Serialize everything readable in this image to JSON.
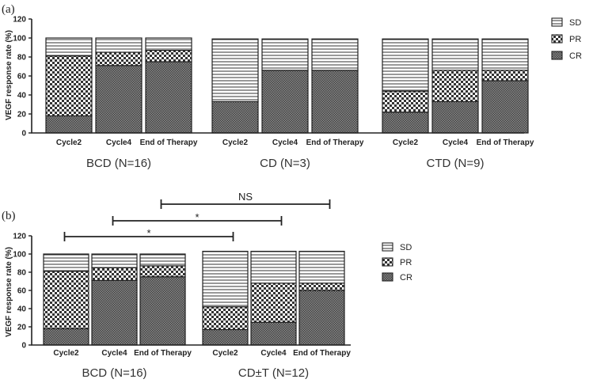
{
  "chart_data": [
    {
      "type": "bar",
      "stacked": true,
      "panel_label": "(a)",
      "ylabel": "VEGF response rate (%)",
      "ylim": [
        0,
        120
      ],
      "yticks": [
        "0",
        "20",
        "40",
        "60",
        "80",
        "100",
        "120"
      ],
      "legend_position": "right",
      "legend": [
        "SD",
        "PR",
        "CR"
      ],
      "groups": [
        {
          "label": "BCD (N=16)",
          "categories": [
            "Cycle2",
            "Cycle4",
            "End of Therapy"
          ],
          "series": [
            {
              "name": "CR",
              "values": [
                18,
                71,
                75
              ]
            },
            {
              "name": "PR",
              "values": [
                63,
                14,
                12
              ]
            },
            {
              "name": "SD",
              "values": [
                19,
                15,
                13
              ]
            }
          ]
        },
        {
          "label": "CD (N=3)",
          "categories": [
            "Cycle2",
            "Cycle4",
            "End of Therapy"
          ],
          "series": [
            {
              "name": "CR",
              "values": [
                33,
                66,
                66
              ]
            },
            {
              "name": "PR",
              "values": [
                0,
                0,
                0
              ]
            },
            {
              "name": "SD",
              "values": [
                66,
                33,
                33
              ]
            }
          ]
        },
        {
          "label": "CTD (N=9)",
          "categories": [
            "Cycle2",
            "Cycle4",
            "End of Therapy"
          ],
          "series": [
            {
              "name": "CR",
              "values": [
                22,
                33,
                55
              ]
            },
            {
              "name": "PR",
              "values": [
                22,
                33,
                11
              ]
            },
            {
              "name": "SD",
              "values": [
                55,
                33,
                33
              ]
            }
          ]
        }
      ]
    },
    {
      "type": "bar",
      "stacked": true,
      "panel_label": "(b)",
      "ylabel": "VEGF response rate (%)",
      "ylim": [
        0,
        120
      ],
      "yticks": [
        "0",
        "20",
        "40",
        "60",
        "80",
        "100",
        "120"
      ],
      "legend_position": "right",
      "legend": [
        "SD",
        "PR",
        "CR"
      ],
      "groups": [
        {
          "label": "BCD (N=16)",
          "categories": [
            "Cycle2",
            "Cycle4",
            "End of Therapy"
          ],
          "series": [
            {
              "name": "CR",
              "values": [
                18,
                71,
                75
              ]
            },
            {
              "name": "PR",
              "values": [
                63,
                14,
                12
              ]
            },
            {
              "name": "SD",
              "values": [
                19,
                15,
                13
              ]
            }
          ]
        },
        {
          "label": "CD±T (N=12)",
          "categories": [
            "Cycle2",
            "Cycle4",
            "End of Therapy"
          ],
          "series": [
            {
              "name": "CR",
              "values": [
                17,
                25,
                60
              ]
            },
            {
              "name": "PR",
              "values": [
                25,
                43,
                8
              ]
            },
            {
              "name": "SD",
              "values": [
                61,
                35,
                35
              ]
            }
          ]
        }
      ],
      "annotations": [
        {
          "text": "*",
          "from": [
            0,
            0
          ],
          "to": [
            1,
            0
          ]
        },
        {
          "text": "*",
          "from": [
            0,
            1
          ],
          "to": [
            1,
            1
          ]
        },
        {
          "text": "NS",
          "from": [
            0,
            2
          ],
          "to": [
            1,
            2
          ]
        }
      ]
    }
  ]
}
